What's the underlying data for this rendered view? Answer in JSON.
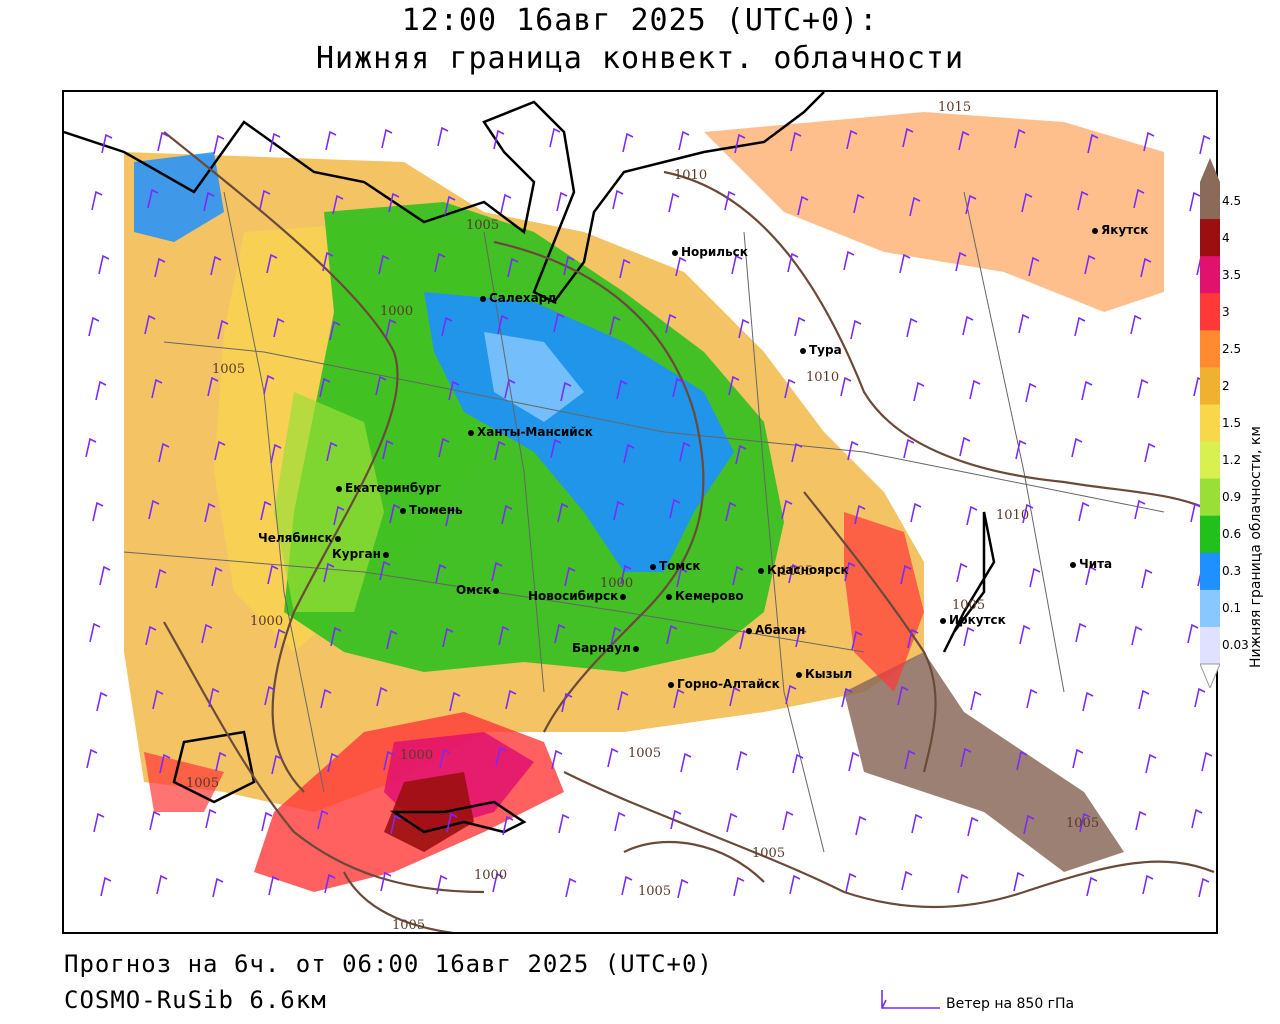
{
  "title": {
    "line1": "12:00 16авг 2025 (UTC+0):",
    "line2": "Нижняя граница конвект. облачности"
  },
  "footer": {
    "forecast": "Прогноз на 6ч. от 06:00 16авг 2025 (UTC+0)",
    "model": "COSMO-RuSib 6.6км",
    "wind_legend": "Ветер на 850 гПа"
  },
  "colorbar": {
    "title": "Нижняя граница облачности, км",
    "ticks": [
      "4.5",
      "4",
      "3.5",
      "3",
      "2.5",
      "2",
      "1.5",
      "1.2",
      "0.9",
      "0.6",
      "0.3",
      "0.1",
      "0.03"
    ],
    "colors": [
      "#8b6a5a",
      "#9c0f10",
      "#e0126e",
      "#ff3838",
      "#ff8a30",
      "#f0b030",
      "#f8d84a",
      "#d8f050",
      "#9ade38",
      "#22c01a",
      "#1e90ff",
      "#88c8ff",
      "#e0e0ff"
    ]
  },
  "cities": [
    {
      "name": "Норильск"
    },
    {
      "name": "Якутск"
    },
    {
      "name": "Салехард"
    },
    {
      "name": "Тура"
    },
    {
      "name": "Ханты-Мансийск"
    },
    {
      "name": "Екатеринбург"
    },
    {
      "name": "Тюмень"
    },
    {
      "name": "Челябинск"
    },
    {
      "name": "Курган"
    },
    {
      "name": "Томск"
    },
    {
      "name": "Красноярск"
    },
    {
      "name": "Чита"
    },
    {
      "name": "Омск"
    },
    {
      "name": "Новосибирск"
    },
    {
      "name": "Кемерово"
    },
    {
      "name": "Иркутск"
    },
    {
      "name": "Абакан"
    },
    {
      "name": "Барнаул"
    },
    {
      "name": "Кызыл"
    },
    {
      "name": "Горно-Алтайск"
    }
  ],
  "isobars": [
    "1015",
    "1010",
    "1005",
    "1000",
    "1005",
    "1010",
    "1005",
    "1000",
    "1005",
    "1000",
    "1005",
    "1005",
    "1010",
    "1005",
    "1000",
    "1005",
    "1005",
    "1000",
    "1005"
  ],
  "colors": {
    "isobar": "#6b4a3a",
    "wind": "#7a2aff",
    "coast": "#000000",
    "borders": "#444444"
  }
}
